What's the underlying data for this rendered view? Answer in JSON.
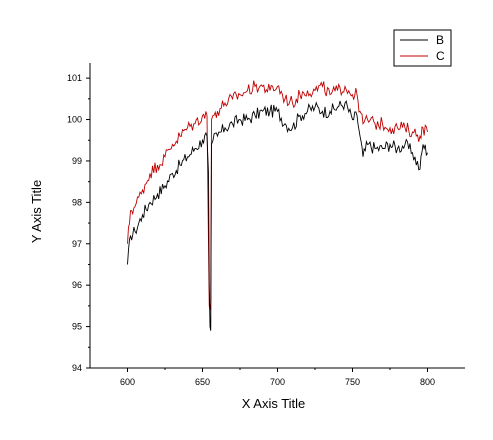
{
  "chart_data": {
    "type": "line",
    "xlabel": "X Axis Title",
    "ylabel": "Y Axis Title",
    "xlim": [
      575,
      825
    ],
    "ylim": [
      94,
      101.8
    ],
    "xticks": [
      600,
      650,
      700,
      750,
      800
    ],
    "yticks": [
      94,
      95,
      96,
      97,
      98,
      99,
      100,
      101
    ],
    "grid": false,
    "legend_position": "top-right",
    "series": [
      {
        "name": "B",
        "color": "#000000",
        "x": [
          600,
          602,
          605,
          610,
          615,
          620,
          625,
          630,
          635,
          640,
          645,
          650,
          653,
          654,
          654.5,
          655,
          655.5,
          656,
          657,
          660,
          665,
          670,
          675,
          680,
          685,
          690,
          695,
          700,
          705,
          710,
          715,
          720,
          725,
          730,
          735,
          740,
          745,
          750,
          753,
          755,
          757,
          760,
          765,
          770,
          775,
          780,
          785,
          790,
          795,
          797,
          800
        ],
        "y": [
          96.5,
          97.2,
          97.3,
          97.7,
          98.0,
          98.2,
          98.4,
          98.7,
          98.9,
          99.1,
          99.3,
          99.5,
          99.6,
          98.7,
          96.0,
          95.0,
          94.9,
          99.4,
          99.5,
          99.6,
          99.8,
          99.9,
          100.0,
          100.0,
          100.1,
          100.2,
          100.2,
          100.2,
          99.9,
          99.8,
          100.1,
          100.2,
          100.3,
          100.2,
          100.2,
          100.3,
          100.4,
          100.0,
          100.1,
          99.6,
          99.1,
          99.4,
          99.3,
          99.3,
          99.4,
          99.3,
          99.4,
          99.2,
          98.8,
          99.4,
          99.2
        ]
      },
      {
        "name": "C",
        "color": "#c00000",
        "x": [
          600,
          602,
          605,
          610,
          615,
          620,
          625,
          630,
          635,
          640,
          645,
          650,
          653,
          654,
          654.5,
          655,
          655.5,
          656,
          657,
          660,
          665,
          670,
          675,
          680,
          685,
          690,
          695,
          700,
          705,
          710,
          715,
          720,
          725,
          730,
          735,
          740,
          745,
          750,
          753,
          755,
          757,
          760,
          765,
          770,
          775,
          780,
          785,
          790,
          795,
          797,
          800
        ],
        "y": [
          97.0,
          97.8,
          97.9,
          98.3,
          98.7,
          98.9,
          99.1,
          99.4,
          99.6,
          99.8,
          99.9,
          100.1,
          100.1,
          97.0,
          95.5,
          95.4,
          95.6,
          100.0,
          100.1,
          100.2,
          100.4,
          100.5,
          100.6,
          100.7,
          100.8,
          100.8,
          100.7,
          100.8,
          100.5,
          100.4,
          100.6,
          100.7,
          100.7,
          100.8,
          100.6,
          100.7,
          100.8,
          100.6,
          100.6,
          100.2,
          99.9,
          100.0,
          99.9,
          99.9,
          99.8,
          99.8,
          99.8,
          99.7,
          99.6,
          99.8,
          99.7
        ]
      }
    ]
  }
}
